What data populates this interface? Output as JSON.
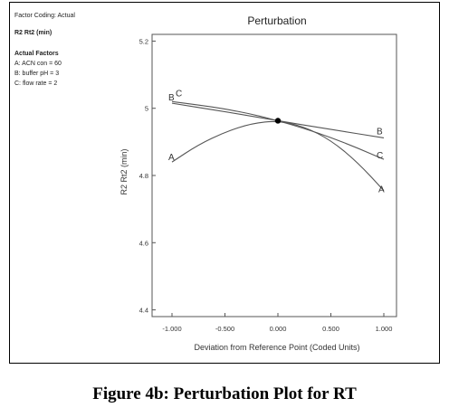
{
  "left_panel": {
    "factor_coding": "Factor Coding: Actual",
    "response": "R2 Rt2 (min)",
    "actual_factors_heading": "Actual Factors",
    "factors": [
      "A: ACN con = 60",
      "B: buffer pH = 3",
      "C: flow rate = 2"
    ]
  },
  "caption": "Figure 4b: Perturbation Plot for RT",
  "chart_data": {
    "type": "line",
    "title": "Perturbation",
    "xlabel": "Deviation from Reference Point (Coded Units)",
    "ylabel": "R2 Rt2 (min)",
    "xlim": [
      -1.0,
      1.0
    ],
    "ylim": [
      4.38,
      5.22
    ],
    "x_ticks": [
      -1.0,
      -0.5,
      0.0,
      0.5,
      1.0
    ],
    "x_tick_labels": [
      "-1.000",
      "-0.500",
      "0.000",
      "0.500",
      "1.000"
    ],
    "y_ticks": [
      4.4,
      4.6,
      4.8,
      5.0,
      5.2
    ],
    "y_tick_labels": [
      "4.4",
      "4.6",
      "4.8",
      "5",
      "5.2"
    ],
    "grid": false,
    "reference_point": {
      "x": 0.0,
      "y": 4.963
    },
    "series": [
      {
        "name": "A",
        "x": [
          -1.0,
          -0.75,
          -0.5,
          -0.25,
          0.0,
          0.25,
          0.5,
          0.75,
          1.0
        ],
        "values": [
          4.84,
          4.892,
          4.929,
          4.955,
          4.963,
          4.945,
          4.905,
          4.84,
          4.755
        ]
      },
      {
        "name": "B",
        "x": [
          -1.0,
          -0.5,
          0.0,
          0.5,
          1.0
        ],
        "values": [
          5.015,
          4.99,
          4.963,
          4.937,
          4.912
        ]
      },
      {
        "name": "C",
        "x": [
          -1.0,
          -0.75,
          -0.5,
          -0.25,
          0.0,
          0.25,
          0.5,
          0.75,
          1.0
        ],
        "values": [
          5.02,
          5.01,
          4.998,
          4.983,
          4.963,
          4.94,
          4.913,
          4.882,
          4.848
        ]
      }
    ]
  }
}
